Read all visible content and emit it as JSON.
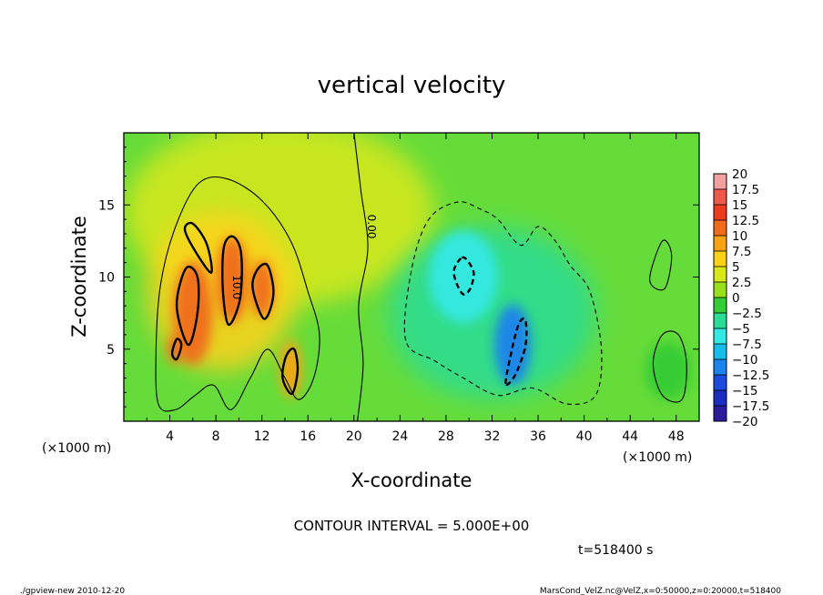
{
  "chart_data": {
    "type": "heatmap",
    "title": "vertical velocity",
    "xlabel": "X-coordinate",
    "ylabel": "Z-coordinate",
    "x_unit": "(×1000 m)",
    "y_unit": "(×1000 m)",
    "xlim": [
      0,
      50
    ],
    "ylim": [
      0,
      20
    ],
    "x_ticks": [
      4,
      8,
      12,
      16,
      20,
      24,
      28,
      32,
      36,
      40,
      44,
      48
    ],
    "y_ticks": [
      5,
      10,
      15
    ],
    "contour_interval_text": "CONTOUR INTERVAL = 5.000E+00",
    "contour_labels": [
      {
        "text": "0.00",
        "x": 21.2,
        "y": 13.5
      },
      {
        "text": "10.0",
        "x": 9.5,
        "y": 9.3
      }
    ],
    "colorbar": {
      "labels": [
        "20",
        "17.5",
        "15",
        "12.5",
        "10",
        "7.5",
        "5",
        "2.5",
        "0",
        "−2.5",
        "−5",
        "−7.5",
        "−10",
        "−12.5",
        "−15",
        "−17.5",
        "−20"
      ],
      "colors": [
        "#f2a0a0",
        "#ee5a4a",
        "#ec3c20",
        "#f06c1a",
        "#f6a414",
        "#ffd21a",
        "#d8e81c",
        "#98e01c",
        "#36cc34",
        "#2cdc96",
        "#34e8e4",
        "#18bcec",
        "#1c82ec",
        "#1c4cdc",
        "#1c2cbc",
        "#2c1c9c",
        "#8a24b4"
      ]
    },
    "blobs": [
      {
        "x": 13.5,
        "y": 14.5,
        "rx": 13.5,
        "ry": 6.5,
        "value": 2.5
      },
      {
        "x": 8.5,
        "y": 9.0,
        "rx": 6.5,
        "ry": 5.5,
        "value": 6
      },
      {
        "x": 6.0,
        "y": 7.5,
        "rx": 1.7,
        "ry": 3.6,
        "value": 11
      },
      {
        "x": 9.4,
        "y": 9.8,
        "rx": 1.4,
        "ry": 3.0,
        "value": 11
      },
      {
        "x": 12.0,
        "y": 9.2,
        "rx": 1.0,
        "ry": 2.0,
        "value": 11
      },
      {
        "x": 14.5,
        "y": 3.6,
        "rx": 1.0,
        "ry": 2.0,
        "value": 9
      },
      {
        "x": 4.5,
        "y": 5.0,
        "rx": 0.7,
        "ry": 1.0,
        "value": 10
      },
      {
        "x": 32.0,
        "y": 7.5,
        "rx": 9.0,
        "ry": 6.0,
        "value": -3
      },
      {
        "x": 29.5,
        "y": 10.0,
        "rx": 3.0,
        "ry": 3.2,
        "value": -7
      },
      {
        "x": 33.8,
        "y": 5.3,
        "rx": 1.6,
        "ry": 2.8,
        "value": -11
      },
      {
        "x": 47.3,
        "y": 3.5,
        "rx": 2.0,
        "ry": 2.0,
        "value": -2
      }
    ],
    "contours": [
      {
        "value": 0,
        "style": "solid",
        "points": [
          [
            3,
            1.2
          ],
          [
            2.8,
            5
          ],
          [
            3.2,
            9.5
          ],
          [
            4.5,
            13.5
          ],
          [
            6.5,
            16.5
          ],
          [
            9,
            16.8
          ],
          [
            12,
            15.3
          ],
          [
            14.5,
            12.5
          ],
          [
            16,
            9
          ],
          [
            17,
            6
          ],
          [
            16.5,
            3
          ],
          [
            15.2,
            1.5
          ],
          [
            14,
            3
          ],
          [
            12.5,
            5
          ],
          [
            11,
            3
          ],
          [
            9.3,
            0.8
          ],
          [
            7.8,
            2.5
          ],
          [
            6.2,
            1.8
          ],
          [
            4.5,
            0.8
          ],
          [
            3,
            1.2
          ]
        ]
      },
      {
        "value": 0,
        "style": "solid",
        "points": [
          [
            20.3,
            0
          ],
          [
            20.8,
            4
          ],
          [
            20.4,
            8
          ],
          [
            21.2,
            12
          ],
          [
            20.6,
            16
          ],
          [
            20.0,
            20
          ]
        ]
      },
      {
        "value": 0,
        "style": "solid",
        "points": [
          [
            45.7,
            9.8
          ],
          [
            46.8,
            12.5
          ],
          [
            47.6,
            11.5
          ],
          [
            47.0,
            9.2
          ],
          [
            45.7,
            9.8
          ]
        ]
      },
      {
        "value": 0,
        "style": "solid",
        "points": [
          [
            46,
            4
          ],
          [
            46.8,
            1.8
          ],
          [
            48.5,
            1.5
          ],
          [
            48.9,
            4
          ],
          [
            48.2,
            6
          ],
          [
            46.8,
            6
          ],
          [
            46,
            4
          ]
        ]
      },
      {
        "value": 10,
        "style": "solid",
        "points": [
          [
            5.4,
            10.6
          ],
          [
            4.6,
            8
          ],
          [
            5.6,
            5.3
          ],
          [
            6.4,
            7.5
          ],
          [
            6.4,
            10.0
          ],
          [
            5.4,
            10.6
          ]
        ]
      },
      {
        "value": 10,
        "style": "solid",
        "points": [
          [
            5.3,
            13.3
          ],
          [
            6.2,
            11.8
          ],
          [
            7.6,
            10.3
          ],
          [
            7.2,
            12.3
          ],
          [
            6.0,
            13.7
          ],
          [
            5.3,
            13.3
          ]
        ]
      },
      {
        "value": 10,
        "style": "solid",
        "points": [
          [
            8.7,
            12.1
          ],
          [
            8.6,
            9.2
          ],
          [
            9.1,
            6.7
          ],
          [
            10.1,
            8.5
          ],
          [
            10.2,
            11.6
          ],
          [
            9.5,
            12.8
          ],
          [
            8.7,
            12.1
          ]
        ]
      },
      {
        "value": 10,
        "style": "solid",
        "points": [
          [
            11.2,
            9.2
          ],
          [
            12.2,
            7.1
          ],
          [
            13.0,
            8.8
          ],
          [
            12.5,
            10.8
          ],
          [
            11.6,
            10.5
          ],
          [
            11.2,
            9.2
          ]
        ]
      },
      {
        "value": 10,
        "style": "solid",
        "points": [
          [
            13.8,
            3.0
          ],
          [
            14.6,
            1.9
          ],
          [
            15.1,
            3.5
          ],
          [
            14.8,
            5.0
          ],
          [
            14.1,
            4.5
          ],
          [
            13.8,
            3.0
          ]
        ]
      },
      {
        "value": 10,
        "style": "solid",
        "points": [
          [
            4.2,
            4.7
          ],
          [
            4.6,
            4.3
          ],
          [
            5.0,
            5.3
          ],
          [
            4.6,
            5.7
          ],
          [
            4.2,
            4.7
          ]
        ]
      },
      {
        "value": -5,
        "style": "dashed",
        "points": [
          [
            24.5,
            5.6
          ],
          [
            25.0,
            10.5
          ],
          [
            26.5,
            14
          ],
          [
            29.0,
            15.2
          ],
          [
            31.0,
            14.7
          ],
          [
            32.5,
            14.0
          ],
          [
            34.5,
            12.2
          ],
          [
            36.0,
            13.5
          ],
          [
            37.5,
            12.5
          ],
          [
            38.8,
            10.8
          ],
          [
            40.5,
            9.0
          ],
          [
            41.5,
            5.0
          ],
          [
            41.0,
            1.8
          ],
          [
            38.5,
            1.2
          ],
          [
            35.5,
            2.3
          ],
          [
            32.5,
            1.8
          ],
          [
            29.5,
            3.0
          ],
          [
            27.0,
            4.2
          ],
          [
            24.5,
            5.6
          ]
        ]
      },
      {
        "value": -10,
        "style": "dashed",
        "points": [
          [
            29.3,
            11.3
          ],
          [
            28.7,
            10.5
          ],
          [
            28.9,
            9.6
          ],
          [
            29.5,
            8.8
          ],
          [
            30.1,
            9.2
          ],
          [
            30.4,
            10.3
          ],
          [
            29.8,
            11.2
          ],
          [
            29.3,
            11.3
          ]
        ]
      },
      {
        "value": -10,
        "style": "dashed",
        "points": [
          [
            33.2,
            2.6
          ],
          [
            33.6,
            4.5
          ],
          [
            34.3,
            6.7
          ],
          [
            34.9,
            7.0
          ],
          [
            34.9,
            5.2
          ],
          [
            34.0,
            3.2
          ],
          [
            33.2,
            2.6
          ]
        ]
      }
    ]
  },
  "footer": {
    "time": "t=518400 s",
    "left": "./gpview-new 2010-12-20",
    "right": "MarsCond_VelZ.nc@VelZ,x=0:50000,z=0:20000,t=518400"
  }
}
